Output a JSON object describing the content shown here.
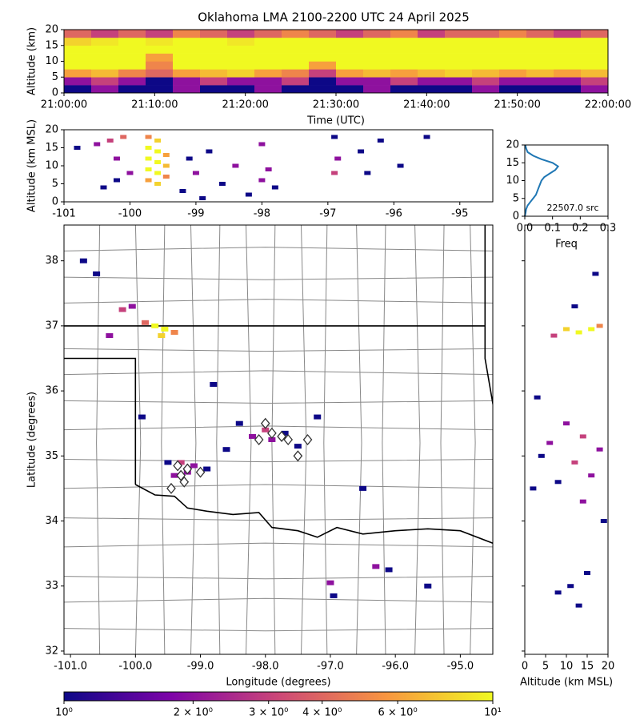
{
  "chart_data": [
    {
      "type": "heatmap",
      "title": "Oklahoma LMA 2100-2200 UTC 24 April 2025",
      "x_label": "Time (UTC)",
      "y_label": "Altitude (km)",
      "xlim": [
        0,
        60
      ],
      "xticks": [
        {
          "value": 0,
          "label": "21:00:00"
        },
        {
          "value": 10,
          "label": "21:10:00"
        },
        {
          "value": 20,
          "label": "21:20:00"
        },
        {
          "value": 30,
          "label": "21:30:00"
        },
        {
          "value": 40,
          "label": "21:40:00"
        },
        {
          "value": 50,
          "label": "21:50:00"
        },
        {
          "value": 60,
          "label": "22:00:00"
        }
      ],
      "ylim": [
        0,
        20
      ],
      "yticks": [
        0,
        5,
        10,
        15,
        20
      ],
      "x_bins": [
        0,
        3,
        6,
        9,
        12,
        15,
        18,
        21,
        24,
        27,
        30,
        33,
        36,
        39,
        42,
        45,
        48,
        51,
        54,
        57,
        60
      ],
      "y_bins": [
        0,
        2.5,
        5,
        7.5,
        10,
        12.5,
        15,
        17.5,
        20
      ],
      "values": [
        [
          1,
          2,
          1,
          1,
          2,
          1,
          1,
          2,
          1,
          1,
          1,
          2,
          1,
          1,
          1,
          2,
          1,
          1,
          1,
          2
        ],
        [
          2,
          3,
          2,
          1,
          2,
          3,
          2,
          2,
          3,
          1,
          2,
          2,
          3,
          2,
          2,
          3,
          2,
          2,
          2,
          3
        ],
        [
          6,
          7,
          5,
          4,
          6,
          7,
          8,
          6,
          5,
          3,
          6,
          7,
          6,
          7,
          8,
          7,
          6,
          7,
          6,
          7
        ],
        [
          10,
          10,
          10,
          5,
          10,
          10,
          10,
          10,
          10,
          6,
          10,
          10,
          10,
          10,
          10,
          10,
          10,
          10,
          10,
          10
        ],
        [
          10,
          10,
          10,
          6,
          10,
          10,
          10,
          10,
          10,
          10,
          10,
          10,
          10,
          10,
          10,
          10,
          10,
          10,
          10,
          10
        ],
        [
          10,
          10,
          10,
          10,
          10,
          10,
          10,
          10,
          10,
          10,
          10,
          10,
          10,
          10,
          10,
          10,
          10,
          10,
          10,
          10
        ],
        [
          8,
          9,
          10,
          9,
          10,
          10,
          9,
          10,
          10,
          10,
          10,
          10,
          10,
          10,
          10,
          10,
          10,
          10,
          10,
          10
        ],
        [
          4,
          3,
          4,
          3,
          5,
          4,
          3,
          4,
          5,
          4,
          3,
          4,
          5,
          3,
          4,
          4,
          5,
          4,
          3,
          4
        ]
      ]
    },
    {
      "type": "density",
      "y_label": "Altitude (km MSL)",
      "xlim": [
        -101,
        -94.5
      ],
      "xticks": [
        -101,
        -100,
        -99,
        -98,
        -97,
        -96,
        -95
      ],
      "ylim": [
        0,
        20
      ],
      "yticks": [
        0,
        5,
        10,
        15,
        20
      ],
      "x": [
        -99.72,
        -99.72,
        -99.72,
        -99.72,
        -99.72,
        -99.58,
        -99.58,
        -99.58,
        -99.58,
        -99.58,
        -99.45,
        -99.45,
        -99.45,
        -100.3,
        -100.2,
        -100.1,
        -100.0,
        -100.4,
        -100.2,
        -100.5,
        -100.8,
        -99.2,
        -99.0,
        -98.8,
        -98.6,
        -98.4,
        -98.2,
        -99.1,
        -98.9,
        -98.0,
        -97.9,
        -97.8,
        -98.0,
        -96.9,
        -96.85,
        -96.9,
        -96.5,
        -96.2,
        -95.9,
        -95.5,
        -96.4
      ],
      "y": [
        6,
        9,
        12,
        15,
        18,
        5,
        8,
        11,
        14,
        17,
        7,
        10,
        13,
        17,
        12,
        18,
        8,
        4,
        6,
        16,
        15,
        3,
        8,
        14,
        5,
        10,
        2,
        12,
        1,
        16,
        9,
        4,
        6,
        8,
        12,
        18,
        14,
        17,
        10,
        18,
        8
      ],
      "counts": [
        6,
        10,
        10,
        10,
        5,
        8,
        10,
        10,
        10,
        8,
        5,
        7,
        6,
        3,
        2,
        4,
        2,
        1,
        1,
        2,
        1,
        1,
        2,
        1,
        1,
        2,
        1,
        1,
        1,
        2,
        2,
        1,
        2,
        3,
        2,
        1,
        1,
        1,
        1,
        1,
        1
      ]
    },
    {
      "type": "line",
      "x_label": "Freq",
      "annotation": "22507.0 src",
      "color": "#1f77b4",
      "xlim": [
        0,
        0.3
      ],
      "xticks": [
        {
          "value": 0,
          "label": "0.0"
        },
        0.1,
        0.2,
        0.3
      ],
      "ylim": [
        0,
        20
      ],
      "yticks": [
        0,
        5,
        10,
        15,
        20
      ],
      "altitudes": [
        0,
        1,
        2,
        3,
        4,
        5,
        6,
        7,
        8,
        9,
        10,
        11,
        12,
        13,
        14,
        15,
        16,
        17,
        18,
        19,
        20
      ],
      "values": [
        0,
        0.003,
        0.005,
        0.01,
        0.02,
        0.03,
        0.04,
        0.045,
        0.05,
        0.055,
        0.06,
        0.07,
        0.09,
        0.11,
        0.12,
        0.1,
        0.06,
        0.03,
        0.01,
        0.005,
        0.002
      ]
    },
    {
      "type": "map",
      "x_label": "Longitude (degrees)",
      "y_label": "Latitude (degrees)",
      "xlim": [
        -101.1,
        -94.5
      ],
      "xticks": [
        {
          "value": -101,
          "label": "-101.0"
        },
        {
          "value": -100,
          "label": "-100.0"
        },
        {
          "value": -99,
          "label": "-99.0"
        },
        {
          "value": -98,
          "label": "-98.0"
        },
        {
          "value": -97,
          "label": "-97.0"
        },
        {
          "value": -96,
          "label": "-96.0"
        },
        {
          "value": -95,
          "label": "-95.0"
        }
      ],
      "ylim": [
        31.95,
        38.55
      ],
      "yticks": [
        32,
        33,
        34,
        35,
        36,
        37,
        38
      ],
      "x": [
        -99.7,
        -99.55,
        -99.6,
        -99.4,
        -99.85,
        -100.2,
        -100.05,
        -100.4,
        -99.3,
        -99.2,
        -99.4,
        -99.1,
        -98.9,
        -99.5,
        -98.0,
        -97.9,
        -98.2,
        -97.7,
        -97.5,
        -98.4,
        -97.2,
        -98.6,
        -96.3,
        -96.1,
        -97.0,
        -96.95,
        -98.8,
        -99.9,
        -100.6,
        -100.8,
        -95.5,
        -96.5
      ],
      "y": [
        37.0,
        36.95,
        36.85,
        36.9,
        37.05,
        37.25,
        37.3,
        36.85,
        34.9,
        34.75,
        34.7,
        34.85,
        34.8,
        34.9,
        35.4,
        35.25,
        35.3,
        35.35,
        35.15,
        35.5,
        35.6,
        35.1,
        33.3,
        33.25,
        33.05,
        32.85,
        36.1,
        35.6,
        37.8,
        38.0,
        33.0,
        34.5
      ],
      "counts": [
        10,
        10,
        8,
        5,
        4,
        3,
        2,
        2,
        3,
        2,
        2,
        2,
        1,
        1,
        3,
        2,
        2,
        1,
        1,
        1,
        1,
        1,
        2,
        1,
        2,
        1,
        1,
        1,
        1,
        1,
        1,
        1
      ],
      "stations": {
        "x": [
          -98.0,
          -97.9,
          -98.1,
          -97.75,
          -97.65,
          -97.5,
          -97.35,
          -99.2,
          -99.3,
          -99.35,
          -99.45,
          -99.0,
          -99.25
        ],
        "y": [
          35.5,
          35.35,
          35.25,
          35.3,
          35.25,
          35.0,
          35.25,
          34.8,
          34.7,
          34.85,
          34.5,
          34.75,
          34.6
        ]
      }
    },
    {
      "type": "density",
      "x_label": "Altitude (km MSL)",
      "xlim": [
        0,
        20
      ],
      "xticks": [
        0,
        5,
        10,
        15,
        20
      ],
      "ylim": [
        31.95,
        38.55
      ],
      "yticks": [
        32,
        33,
        34,
        35,
        36,
        37,
        38
      ],
      "x": [
        13,
        16,
        10,
        18,
        7,
        12,
        17,
        3,
        10,
        14,
        18,
        6,
        12,
        16,
        8,
        4,
        14,
        11,
        8,
        15,
        13,
        19,
        2
      ],
      "y": [
        36.9,
        36.95,
        36.95,
        37.0,
        36.85,
        37.3,
        37.8,
        35.9,
        35.5,
        35.3,
        35.1,
        35.2,
        34.9,
        34.7,
        34.6,
        35.0,
        34.3,
        33.0,
        32.9,
        33.2,
        32.7,
        34.0,
        34.5
      ],
      "counts": [
        10,
        10,
        8,
        5,
        3,
        1,
        1,
        1,
        2,
        3,
        2,
        2,
        3,
        2,
        1,
        1,
        2,
        1,
        1,
        1,
        1,
        1,
        1
      ]
    },
    {
      "type": "colorbar",
      "colormap": "plasma",
      "log": true,
      "xlim": [
        1,
        10
      ],
      "xticks": [
        {
          "value": 1,
          "label": "10⁰"
        },
        {
          "value": 2,
          "label": "2 × 10⁰"
        },
        {
          "value": 3,
          "label": "3 × 10⁰"
        },
        {
          "value": 4,
          "label": "4 × 10⁰"
        },
        {
          "value": 6,
          "label": "6 × 10⁰"
        },
        {
          "value": 10,
          "label": "10¹"
        }
      ]
    }
  ]
}
